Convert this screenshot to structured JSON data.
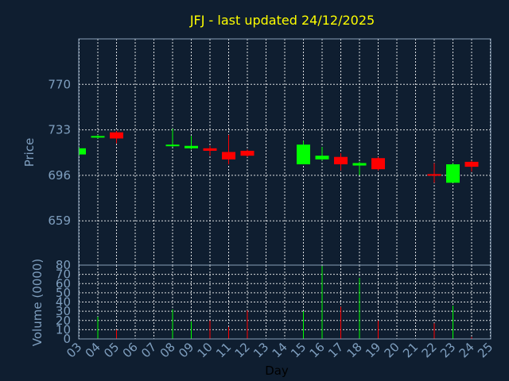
{
  "chart_data": {
    "type": "candlestick",
    "title": "JFJ - last updated 24/12/2025",
    "xlabel": "Day",
    "price_panel": {
      "ylabel": "Price",
      "ylim": [
        623,
        807
      ],
      "yticks": [
        659,
        696,
        733,
        770
      ]
    },
    "volume_panel": {
      "ylabel": "Volume (0000)",
      "ylim": [
        0,
        80
      ],
      "yticks": [
        0,
        10,
        20,
        30,
        40,
        50,
        60,
        70,
        80
      ]
    },
    "x_ticks": [
      "03",
      "04",
      "05",
      "06",
      "07",
      "08",
      "09",
      "10",
      "11",
      "12",
      "13",
      "14",
      "15",
      "16",
      "17",
      "18",
      "19",
      "20",
      "21",
      "22",
      "23",
      "24",
      "25"
    ],
    "colors": {
      "up": "#00ff00",
      "down": "#ff0000",
      "background": "#0f1e30",
      "title": "#ffff00"
    },
    "candles": [
      {
        "day": "03",
        "open": 713,
        "close": 718,
        "high": 719,
        "low": 712,
        "volume": 0
      },
      {
        "day": "04",
        "open": 727,
        "close": 728,
        "high": 729,
        "low": 726,
        "volume": 24
      },
      {
        "day": "05",
        "open": 731,
        "close": 726,
        "high": 732,
        "low": 722,
        "volume": 10
      },
      {
        "day": "08",
        "open": 720,
        "close": 721,
        "high": 734,
        "low": 719,
        "volume": 32
      },
      {
        "day": "09",
        "open": 718,
        "close": 720,
        "high": 728,
        "low": 717,
        "volume": 19
      },
      {
        "day": "10",
        "open": 718,
        "close": 716,
        "high": 720,
        "low": 712,
        "volume": 20
      },
      {
        "day": "11",
        "open": 715,
        "close": 709,
        "high": 729,
        "low": 705,
        "volume": 13
      },
      {
        "day": "12",
        "open": 716,
        "close": 712,
        "high": 717,
        "low": 711,
        "volume": 31
      },
      {
        "day": "15",
        "open": 705,
        "close": 721,
        "high": 724,
        "low": 705,
        "volume": 30
      },
      {
        "day": "16",
        "open": 709,
        "close": 712,
        "high": 719,
        "low": 708,
        "volume": 79
      },
      {
        "day": "17",
        "open": 711,
        "close": 705,
        "high": 714,
        "low": 700,
        "volume": 35
      },
      {
        "day": "18",
        "open": 704,
        "close": 706,
        "high": 707,
        "low": 696,
        "volume": 66
      },
      {
        "day": "19",
        "open": 710,
        "close": 701,
        "high": 711,
        "low": 700,
        "volume": 20
      },
      {
        "day": "22",
        "open": 697,
        "close": 696,
        "high": 706,
        "low": 690,
        "volume": 17
      },
      {
        "day": "23",
        "open": 690,
        "close": 705,
        "high": 706,
        "low": 690,
        "volume": 36
      },
      {
        "day": "24",
        "open": 707,
        "close": 703,
        "high": 708,
        "low": 699,
        "volume": 2
      }
    ]
  }
}
